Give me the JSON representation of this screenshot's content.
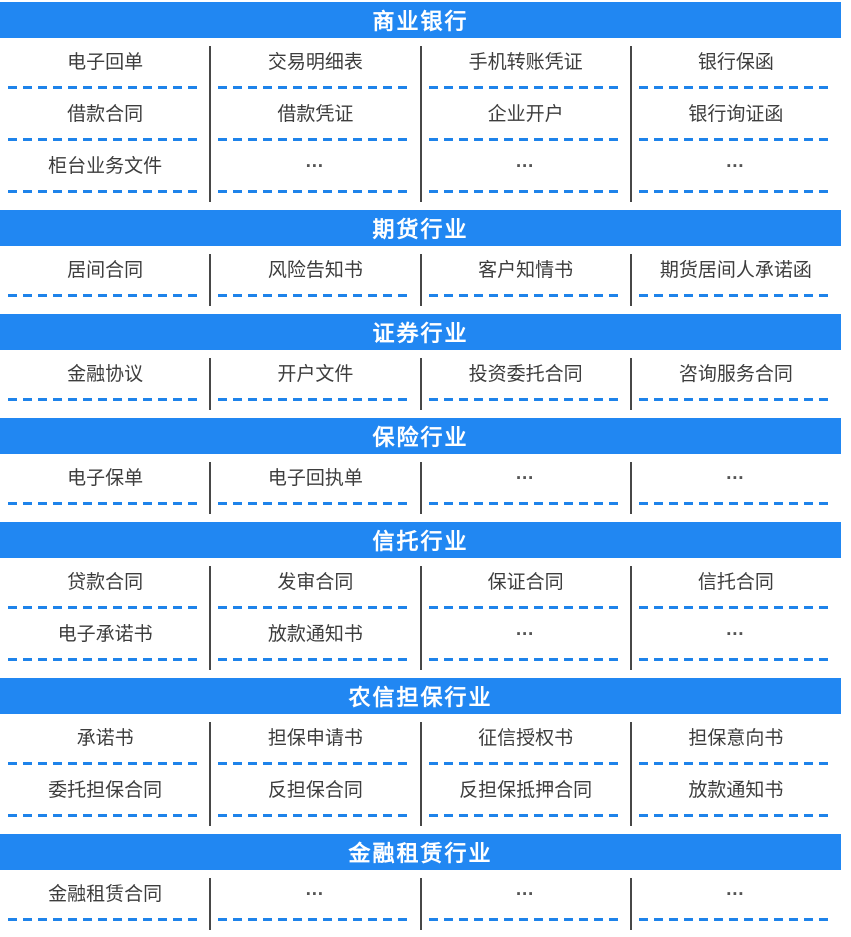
{
  "colors": {
    "header_bg": "#2187F2",
    "header_text": "#ffffff",
    "dash": "#1E83EA",
    "separator": "#474747",
    "cell_text": "#3d3d3d",
    "ellipsis": "#555555",
    "background": "#ffffff"
  },
  "sections": [
    {
      "title": "商业银行",
      "rows": [
        [
          "电子回单",
          "交易明细表",
          "手机转账凭证",
          "银行保函"
        ],
        [
          "借款合同",
          "借款凭证",
          "企业开户",
          "银行询证函"
        ],
        [
          "柜台业务文件",
          "…",
          "…",
          "…"
        ]
      ]
    },
    {
      "title": "期货行业",
      "rows": [
        [
          "居间合同",
          "风险告知书",
          "客户知情书",
          "期货居间人承诺函"
        ]
      ]
    },
    {
      "title": "证券行业",
      "rows": [
        [
          "金融协议",
          "开户文件",
          "投资委托合同",
          "咨询服务合同"
        ]
      ]
    },
    {
      "title": "保险行业",
      "rows": [
        [
          "电子保单",
          "电子回执单",
          "…",
          "…"
        ]
      ]
    },
    {
      "title": "信托行业",
      "rows": [
        [
          "贷款合同",
          "发审合同",
          "保证合同",
          "信托合同"
        ],
        [
          "电子承诺书",
          "放款通知书",
          "…",
          "…"
        ]
      ]
    },
    {
      "title": "农信担保行业",
      "rows": [
        [
          "承诺书",
          "担保申请书",
          "征信授权书",
          "担保意向书"
        ],
        [
          "委托担保合同",
          "反担保合同",
          "反担保抵押合同",
          "放款通知书"
        ]
      ]
    },
    {
      "title": "金融租赁行业",
      "rows": [
        [
          "金融租赁合同",
          "…",
          "…",
          "…"
        ]
      ]
    }
  ]
}
